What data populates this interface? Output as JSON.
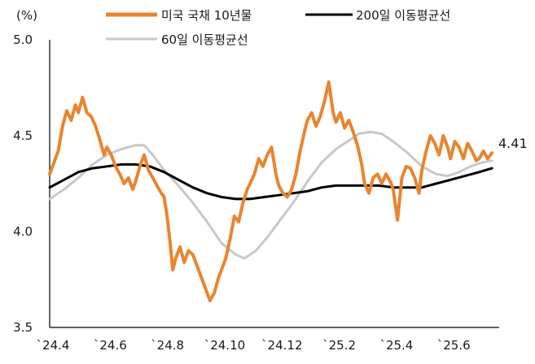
{
  "chart_data": {
    "type": "line",
    "unit_label": "(%)",
    "y_ticks": [
      "5.0",
      "4.5",
      "4.0",
      "3.5"
    ],
    "y_tick_values": [
      5.0,
      4.5,
      4.0,
      3.5
    ],
    "ylim": [
      3.5,
      5.0
    ],
    "x_tick_labels": [
      "`24.4",
      "`24.6",
      "`24.8",
      "`24.10",
      "`24.12",
      "`25.2",
      "`25.4",
      "`25.6"
    ],
    "x_tick_values": [
      0,
      2,
      4,
      6,
      8,
      10,
      12,
      14
    ],
    "xlim": [
      0,
      15.7
    ],
    "grid": false,
    "legend_position": "top",
    "end_label": "4.41",
    "series": [
      {
        "name": "미국 국채 10년물",
        "color": "#E8852F",
        "width": 4,
        "points": [
          [
            0.0,
            4.3
          ],
          [
            0.15,
            4.36
          ],
          [
            0.3,
            4.42
          ],
          [
            0.45,
            4.55
          ],
          [
            0.6,
            4.63
          ],
          [
            0.75,
            4.58
          ],
          [
            0.9,
            4.66
          ],
          [
            1.0,
            4.62
          ],
          [
            1.15,
            4.7
          ],
          [
            1.3,
            4.62
          ],
          [
            1.45,
            4.6
          ],
          [
            1.6,
            4.55
          ],
          [
            1.75,
            4.48
          ],
          [
            1.9,
            4.4
          ],
          [
            2.0,
            4.44
          ],
          [
            2.15,
            4.4
          ],
          [
            2.3,
            4.34
          ],
          [
            2.45,
            4.3
          ],
          [
            2.6,
            4.25
          ],
          [
            2.75,
            4.28
          ],
          [
            2.9,
            4.22
          ],
          [
            3.0,
            4.26
          ],
          [
            3.15,
            4.34
          ],
          [
            3.3,
            4.4
          ],
          [
            3.45,
            4.32
          ],
          [
            3.6,
            4.28
          ],
          [
            3.75,
            4.24
          ],
          [
            3.9,
            4.2
          ],
          [
            4.0,
            4.18
          ],
          [
            4.1,
            4.08
          ],
          [
            4.2,
            3.95
          ],
          [
            4.3,
            3.8
          ],
          [
            4.4,
            3.86
          ],
          [
            4.55,
            3.92
          ],
          [
            4.7,
            3.84
          ],
          [
            4.85,
            3.9
          ],
          [
            5.0,
            3.88
          ],
          [
            5.15,
            3.82
          ],
          [
            5.3,
            3.76
          ],
          [
            5.45,
            3.7
          ],
          [
            5.6,
            3.64
          ],
          [
            5.75,
            3.68
          ],
          [
            5.9,
            3.76
          ],
          [
            6.0,
            3.8
          ],
          [
            6.15,
            3.86
          ],
          [
            6.3,
            3.96
          ],
          [
            6.45,
            4.08
          ],
          [
            6.6,
            4.05
          ],
          [
            6.75,
            4.15
          ],
          [
            6.9,
            4.22
          ],
          [
            7.0,
            4.25
          ],
          [
            7.15,
            4.3
          ],
          [
            7.3,
            4.38
          ],
          [
            7.45,
            4.34
          ],
          [
            7.6,
            4.4
          ],
          [
            7.75,
            4.44
          ],
          [
            7.9,
            4.3
          ],
          [
            8.0,
            4.24
          ],
          [
            8.15,
            4.2
          ],
          [
            8.3,
            4.18
          ],
          [
            8.45,
            4.22
          ],
          [
            8.6,
            4.3
          ],
          [
            8.75,
            4.42
          ],
          [
            8.9,
            4.52
          ],
          [
            9.0,
            4.58
          ],
          [
            9.15,
            4.62
          ],
          [
            9.3,
            4.55
          ],
          [
            9.45,
            4.6
          ],
          [
            9.6,
            4.68
          ],
          [
            9.75,
            4.78
          ],
          [
            9.9,
            4.62
          ],
          [
            10.0,
            4.57
          ],
          [
            10.15,
            4.62
          ],
          [
            10.3,
            4.54
          ],
          [
            10.45,
            4.58
          ],
          [
            10.6,
            4.52
          ],
          [
            10.75,
            4.45
          ],
          [
            10.9,
            4.35
          ],
          [
            11.0,
            4.25
          ],
          [
            11.15,
            4.2
          ],
          [
            11.3,
            4.28
          ],
          [
            11.45,
            4.3
          ],
          [
            11.6,
            4.25
          ],
          [
            11.75,
            4.3
          ],
          [
            11.9,
            4.26
          ],
          [
            12.0,
            4.22
          ],
          [
            12.15,
            4.06
          ],
          [
            12.3,
            4.28
          ],
          [
            12.45,
            4.34
          ],
          [
            12.6,
            4.33
          ],
          [
            12.75,
            4.28
          ],
          [
            12.9,
            4.2
          ],
          [
            13.0,
            4.32
          ],
          [
            13.15,
            4.42
          ],
          [
            13.3,
            4.5
          ],
          [
            13.45,
            4.46
          ],
          [
            13.6,
            4.4
          ],
          [
            13.75,
            4.5
          ],
          [
            13.9,
            4.44
          ],
          [
            14.0,
            4.38
          ],
          [
            14.15,
            4.47
          ],
          [
            14.3,
            4.44
          ],
          [
            14.45,
            4.38
          ],
          [
            14.6,
            4.46
          ],
          [
            14.75,
            4.42
          ],
          [
            14.9,
            4.37
          ],
          [
            15.0,
            4.38
          ],
          [
            15.15,
            4.42
          ],
          [
            15.3,
            4.38
          ],
          [
            15.45,
            4.41
          ]
        ]
      },
      {
        "name": "200일 이동평균선",
        "color": "#000000",
        "width": 3,
        "points": [
          [
            0.0,
            4.23
          ],
          [
            0.5,
            4.27
          ],
          [
            1.0,
            4.31
          ],
          [
            1.5,
            4.33
          ],
          [
            2.0,
            4.34
          ],
          [
            2.5,
            4.35
          ],
          [
            3.0,
            4.35
          ],
          [
            3.5,
            4.34
          ],
          [
            4.0,
            4.31
          ],
          [
            4.5,
            4.27
          ],
          [
            5.0,
            4.23
          ],
          [
            5.5,
            4.2
          ],
          [
            6.0,
            4.18
          ],
          [
            6.5,
            4.17
          ],
          [
            7.0,
            4.17
          ],
          [
            7.5,
            4.18
          ],
          [
            8.0,
            4.19
          ],
          [
            8.5,
            4.2
          ],
          [
            9.0,
            4.21
          ],
          [
            9.5,
            4.23
          ],
          [
            10.0,
            4.24
          ],
          [
            10.5,
            4.24
          ],
          [
            11.0,
            4.24
          ],
          [
            11.5,
            4.24
          ],
          [
            12.0,
            4.23
          ],
          [
            12.5,
            4.23
          ],
          [
            13.0,
            4.23
          ],
          [
            13.5,
            4.25
          ],
          [
            14.0,
            4.27
          ],
          [
            14.5,
            4.29
          ],
          [
            15.0,
            4.31
          ],
          [
            15.45,
            4.33
          ]
        ]
      },
      {
        "name": "60일 이동평균선",
        "color": "#C8C8C8",
        "width": 3,
        "points": [
          [
            0.0,
            4.17
          ],
          [
            0.5,
            4.22
          ],
          [
            1.0,
            4.28
          ],
          [
            1.5,
            4.35
          ],
          [
            2.0,
            4.4
          ],
          [
            2.5,
            4.43
          ],
          [
            3.0,
            4.45
          ],
          [
            3.3,
            4.45
          ],
          [
            3.6,
            4.4
          ],
          [
            4.0,
            4.32
          ],
          [
            4.5,
            4.24
          ],
          [
            5.0,
            4.15
          ],
          [
            5.5,
            4.05
          ],
          [
            6.0,
            3.94
          ],
          [
            6.5,
            3.88
          ],
          [
            6.8,
            3.86
          ],
          [
            7.2,
            3.9
          ],
          [
            7.6,
            3.97
          ],
          [
            8.0,
            4.05
          ],
          [
            8.5,
            4.15
          ],
          [
            9.0,
            4.26
          ],
          [
            9.5,
            4.36
          ],
          [
            10.0,
            4.43
          ],
          [
            10.5,
            4.48
          ],
          [
            10.8,
            4.51
          ],
          [
            11.2,
            4.52
          ],
          [
            11.6,
            4.51
          ],
          [
            12.0,
            4.47
          ],
          [
            12.5,
            4.41
          ],
          [
            13.0,
            4.34
          ],
          [
            13.5,
            4.3
          ],
          [
            13.9,
            4.29
          ],
          [
            14.3,
            4.31
          ],
          [
            14.7,
            4.34
          ],
          [
            15.1,
            4.36
          ],
          [
            15.45,
            4.37
          ]
        ]
      }
    ]
  }
}
